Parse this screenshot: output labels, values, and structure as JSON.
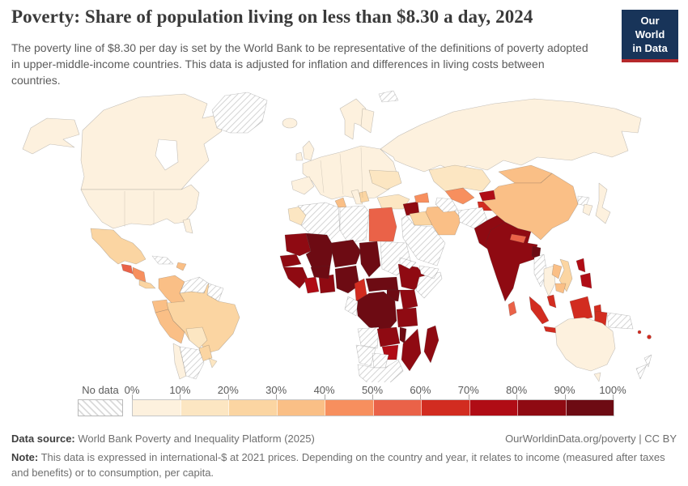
{
  "header": {
    "title": "Poverty: Share of population living on less than $8.30 a day, 2024",
    "subtitle": "The poverty line of $8.30 per day is set by the World Bank to be representative of the definitions of poverty adopted in upper-middle-income countries. This data is adjusted for inflation and differences in living costs between countries.",
    "logo": {
      "line1": "Our World",
      "line2": "in Data",
      "bg_color": "#183459",
      "accent_color": "#b5282b"
    }
  },
  "legend": {
    "no_data_label": "No data",
    "tick_labels": [
      "0%",
      "10%",
      "20%",
      "30%",
      "40%",
      "50%",
      "60%",
      "70%",
      "80%",
      "90%",
      "100%"
    ],
    "band_colors": [
      "#fdf1de",
      "#fce6c2",
      "#fbd5a2",
      "#fabf86",
      "#f78f5e",
      "#ea6248",
      "#d22c20",
      "#b00c15",
      "#8f0a12",
      "#6d0b13"
    ]
  },
  "footer": {
    "source_label": "Data source:",
    "source_text": " World Bank Poverty and Inequality Platform (2025)",
    "link_text": "OurWorldinData.org/poverty | CC BY",
    "note_label": "Note:",
    "note_text": " This data is expressed in international-$ at 2021 prices. Depending on the country and year, it relates to income (measured after taxes and benefits) or to consumption, per capita."
  },
  "chart_data": {
    "type": "choropleth_map",
    "title": "Share of population living on less than $8.30 a day, 2024",
    "unit": "% of population",
    "value_bins": [
      "0-10%",
      "10-20%",
      "20-30%",
      "30-40%",
      "40-50%",
      "50-60%",
      "60-70%",
      "70-80%",
      "80-90%",
      "90-100%"
    ],
    "no_data_style": "white-diagonal-hatch",
    "countries": [
      {
        "id": "canada",
        "band": 0
      },
      {
        "id": "usa",
        "band": 0
      },
      {
        "id": "greenland",
        "band": "no_data"
      },
      {
        "id": "mexico",
        "band": 2
      },
      {
        "id": "guatemala",
        "band": 5
      },
      {
        "id": "honduras_nicaragua",
        "band": 4
      },
      {
        "id": "costa_panama",
        "band": 2
      },
      {
        "id": "cuba",
        "band": "no_data"
      },
      {
        "id": "hispaniola",
        "band": 3
      },
      {
        "id": "colombia",
        "band": 3
      },
      {
        "id": "venezuela",
        "band": "no_data"
      },
      {
        "id": "guyanas",
        "band": "no_data"
      },
      {
        "id": "ecuador",
        "band": 3
      },
      {
        "id": "peru",
        "band": 3
      },
      {
        "id": "brazil",
        "band": 2
      },
      {
        "id": "bolivia",
        "band": 1
      },
      {
        "id": "paraguay",
        "band": 2
      },
      {
        "id": "chile",
        "band": 0
      },
      {
        "id": "argentina",
        "band": "no_data"
      },
      {
        "id": "uruguay",
        "band": 1
      },
      {
        "id": "iceland",
        "band": 0
      },
      {
        "id": "uk",
        "band": 0
      },
      {
        "id": "ireland",
        "band": 0
      },
      {
        "id": "norway_sweden",
        "band": 0
      },
      {
        "id": "finland",
        "band": 0
      },
      {
        "id": "europe_main",
        "band": 0
      },
      {
        "id": "iberia",
        "band": 0
      },
      {
        "id": "ukraine",
        "band": 1
      },
      {
        "id": "balkans",
        "band": 2
      },
      {
        "id": "turkey",
        "band": 1
      },
      {
        "id": "svalbard",
        "band": "no_data"
      },
      {
        "id": "morocco",
        "band": 1
      },
      {
        "id": "algeria",
        "band": "no_data"
      },
      {
        "id": "tunisia",
        "band": 3
      },
      {
        "id": "libya",
        "band": "no_data"
      },
      {
        "id": "egypt",
        "band": 5
      },
      {
        "id": "mauritania",
        "band": 8
      },
      {
        "id": "mali",
        "band": 9
      },
      {
        "id": "niger",
        "band": 9
      },
      {
        "id": "chad",
        "band": 9
      },
      {
        "id": "sudan",
        "band": "no_data"
      },
      {
        "id": "senegal",
        "band": 8
      },
      {
        "id": "guinea",
        "band": 8
      },
      {
        "id": "cote_divoire",
        "band": 7
      },
      {
        "id": "ghana",
        "band": 8
      },
      {
        "id": "burkina",
        "band": 9
      },
      {
        "id": "nigeria",
        "band": 9
      },
      {
        "id": "cameroon",
        "band": 6
      },
      {
        "id": "car_ssudan",
        "band": 9
      },
      {
        "id": "ethiopia",
        "band": 8
      },
      {
        "id": "eritrea",
        "band": "no_data"
      },
      {
        "id": "somalia",
        "band": "no_data"
      },
      {
        "id": "kenya",
        "band": 8
      },
      {
        "id": "uganda",
        "band": 9
      },
      {
        "id": "drc",
        "band": 9
      },
      {
        "id": "gabon_congo",
        "band": "no_data"
      },
      {
        "id": "tanzania",
        "band": 8
      },
      {
        "id": "angola",
        "band": "no_data"
      },
      {
        "id": "zambia",
        "band": 8
      },
      {
        "id": "malawi",
        "band": 9
      },
      {
        "id": "mozambique",
        "band": 8
      },
      {
        "id": "zimbabwe",
        "band": 7
      },
      {
        "id": "madagascar",
        "band": 8
      },
      {
        "id": "namibia",
        "band": "no_data"
      },
      {
        "id": "botswana",
        "band": "no_data"
      },
      {
        "id": "south_africa",
        "band": "no_data"
      },
      {
        "id": "syria",
        "band": 8
      },
      {
        "id": "iraq",
        "band": 2
      },
      {
        "id": "saudi_arabia",
        "band": "no_data"
      },
      {
        "id": "yemen",
        "band": "no_data"
      },
      {
        "id": "iran",
        "band": 3
      },
      {
        "id": "caucasus",
        "band": 4
      },
      {
        "id": "russia",
        "band": 0
      },
      {
        "id": "kazakhstan",
        "band": 1
      },
      {
        "id": "uzbekistan",
        "band": 4
      },
      {
        "id": "turkmenistan",
        "band": "no_data"
      },
      {
        "id": "kyrgyzstan",
        "band": 7
      },
      {
        "id": "tajikistan",
        "band": 6
      },
      {
        "id": "afghanistan",
        "band": "no_data"
      },
      {
        "id": "pakistan",
        "band": 8
      },
      {
        "id": "india",
        "band": 8
      },
      {
        "id": "nepal",
        "band": 5
      },
      {
        "id": "bangladesh",
        "band": 9
      },
      {
        "id": "sri_lanka",
        "band": 5
      },
      {
        "id": "china",
        "band": 3
      },
      {
        "id": "mongolia",
        "band": 3
      },
      {
        "id": "japan",
        "band": 0
      },
      {
        "id": "south_korea",
        "band": 0
      },
      {
        "id": "north_korea",
        "band": "no_data"
      },
      {
        "id": "myanmar",
        "band": "no_data"
      },
      {
        "id": "thailand",
        "band": 0
      },
      {
        "id": "laos",
        "band": 3
      },
      {
        "id": "vietnam",
        "band": 2
      },
      {
        "id": "cambodia",
        "band": 3
      },
      {
        "id": "malaysia",
        "band": 6
      },
      {
        "id": "indonesia",
        "band": 6
      },
      {
        "id": "philippines",
        "band": 7
      },
      {
        "id": "papua_indonesia",
        "band": 6
      },
      {
        "id": "papua_new_guinea",
        "band": "no_data"
      },
      {
        "id": "fiji",
        "band": 6
      },
      {
        "id": "vanuatu",
        "band": 6
      },
      {
        "id": "australia",
        "band": 0
      },
      {
        "id": "tasmania",
        "band": 0
      },
      {
        "id": "new_zealand",
        "band": "no_data"
      }
    ]
  }
}
